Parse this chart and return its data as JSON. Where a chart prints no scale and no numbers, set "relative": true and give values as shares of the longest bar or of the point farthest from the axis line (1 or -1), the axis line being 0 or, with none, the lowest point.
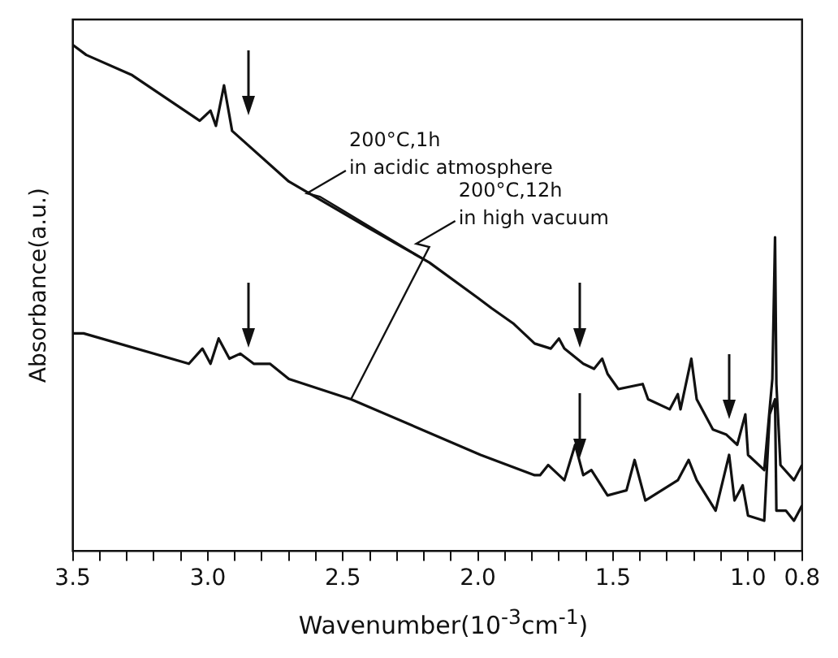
{
  "chart_data": {
    "type": "line",
    "xlabel": "Wavenumber(10$^{-3}$cm$^{-1}$)",
    "ylabel": "Absorbance(a.u.)",
    "relative": true,
    "xlim": [
      3.5,
      0.8
    ],
    "xticks": [
      3.5,
      {
        "value": 3.4,
        "label": null
      },
      {
        "value": 3.3,
        "label": null
      },
      {
        "value": 3.2,
        "label": null
      },
      {
        "value": 3.1,
        "label": null
      },
      "3.0",
      {
        "value": 2.9,
        "label": null
      },
      {
        "value": 2.8,
        "label": null
      },
      {
        "value": 2.7,
        "label": null
      },
      {
        "value": 2.6,
        "label": null
      },
      2.5,
      {
        "value": 2.4,
        "label": null
      },
      {
        "value": 2.3,
        "label": null
      },
      {
        "value": 2.2,
        "label": null
      },
      {
        "value": 2.1,
        "label": null
      },
      {
        "value": 2.0,
        "label": "2.0"
      },
      {
        "value": 1.9,
        "label": null
      },
      {
        "value": 1.8,
        "label": null
      },
      {
        "value": 1.7,
        "label": null
      },
      {
        "value": 1.6,
        "label": null
      },
      1.5,
      {
        "value": 1.4,
        "label": null
      },
      {
        "value": 1.3,
        "label": null
      },
      {
        "value": 1.2,
        "label": null
      },
      {
        "value": 1.1,
        "label": null
      },
      {
        "value": 1.0,
        "label": "1.0"
      },
      {
        "value": 0.9,
        "label": null
      },
      0.8
    ],
    "grid": false,
    "legend": false,
    "marker": "none",
    "line_style": "solid",
    "series": [
      {
        "name": "200°C,1h\nin acidic atmosphere",
        "color": "#111111",
        "x": [
          3.5,
          3.45,
          3.28,
          3.03,
          2.99,
          2.97,
          2.94,
          2.91,
          2.7,
          2.41,
          2.18,
          2.0,
          1.95,
          1.87,
          1.79,
          1.73,
          1.7,
          1.68,
          1.61,
          1.57,
          1.54,
          1.52,
          1.48,
          1.39,
          1.37,
          1.29,
          1.26,
          1.25,
          1.21,
          1.19,
          1.13,
          1.08,
          1.04,
          1.01,
          1.0,
          0.94,
          0.91,
          0.9,
          0.895,
          0.88,
          0.83,
          0.8
        ],
        "values": [
          1.0,
          0.98,
          0.94,
          0.85,
          0.87,
          0.84,
          0.92,
          0.83,
          0.73,
          0.64,
          0.57,
          0.5,
          0.48,
          0.45,
          0.41,
          0.4,
          0.42,
          0.4,
          0.37,
          0.36,
          0.38,
          0.35,
          0.32,
          0.33,
          0.3,
          0.28,
          0.31,
          0.28,
          0.38,
          0.3,
          0.24,
          0.23,
          0.21,
          0.27,
          0.19,
          0.16,
          0.34,
          0.62,
          0.33,
          0.17,
          0.14,
          0.17
        ]
      },
      {
        "name": "200°C,12h\nin high vacuum",
        "color": "#111111",
        "x": [
          3.5,
          3.46,
          3.07,
          3.02,
          2.99,
          2.96,
          2.92,
          2.88,
          2.83,
          2.77,
          2.7,
          2.47,
          1.99,
          1.79,
          1.77,
          1.74,
          1.68,
          1.64,
          1.61,
          1.58,
          1.52,
          1.45,
          1.42,
          1.38,
          1.29,
          1.26,
          1.22,
          1.19,
          1.12,
          1.07,
          1.05,
          1.02,
          1.0,
          0.94,
          0.92,
          0.9,
          0.895,
          0.86,
          0.83,
          0.8
        ],
        "values": [
          0.43,
          0.43,
          0.37,
          0.4,
          0.37,
          0.42,
          0.38,
          0.39,
          0.37,
          0.37,
          0.34,
          0.3,
          0.19,
          0.15,
          0.15,
          0.17,
          0.14,
          0.21,
          0.15,
          0.16,
          0.11,
          0.12,
          0.18,
          0.1,
          0.13,
          0.14,
          0.18,
          0.14,
          0.08,
          0.19,
          0.1,
          0.13,
          0.07,
          0.06,
          0.27,
          0.3,
          0.08,
          0.08,
          0.06,
          0.09
        ]
      }
    ]
  }
}
